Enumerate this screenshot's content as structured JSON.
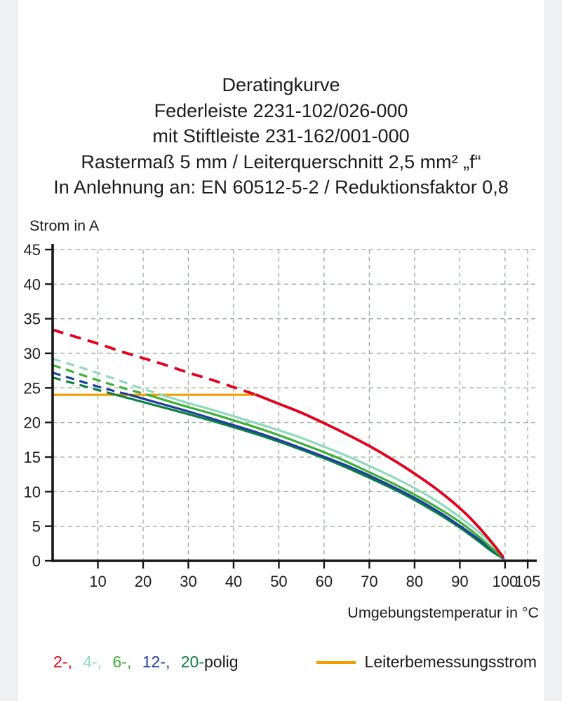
{
  "header": {
    "lines": [
      "Deratingkurve",
      "Federleiste 2231-102/026-000",
      "mit Stiftleiste 231-162/001-000",
      "Rastermaß 5 mm / Leiterquerschnitt 2,5 mm² „f“",
      "In Anlehnung an: EN 60512-5-2 / Reduktionsfaktor 0,8"
    ]
  },
  "chart_data": {
    "type": "line",
    "title": "Deratingkurve",
    "xlabel": "Umgebungstemperatur in °C",
    "ylabel": "Strom in A",
    "xlim": [
      0,
      107
    ],
    "ylim": [
      0,
      45
    ],
    "xticks": [
      10,
      20,
      30,
      40,
      50,
      60,
      70,
      80,
      90,
      100,
      105
    ],
    "yticks": [
      0,
      5,
      10,
      15,
      20,
      25,
      30,
      35,
      40,
      45
    ],
    "grid": true,
    "grid_color": "#9aab9a",
    "axis_color": "#161615",
    "series": [
      {
        "name": "2-polig",
        "color": "#e2001a",
        "stroke_width": 3.8,
        "dash_pattern": "16 10",
        "dash_until_x": 45,
        "points": [
          [
            0,
            33.4
          ],
          [
            5,
            32.4
          ],
          [
            10,
            31.4
          ],
          [
            15,
            30.3
          ],
          [
            20,
            29.3
          ],
          [
            25,
            28.3
          ],
          [
            30,
            27.2
          ],
          [
            35,
            26.2
          ],
          [
            40,
            25.1
          ],
          [
            45,
            24
          ],
          [
            50,
            22.7
          ],
          [
            55,
            21.4
          ],
          [
            60,
            19.9
          ],
          [
            65,
            18.3
          ],
          [
            70,
            16.6
          ],
          [
            75,
            14.7
          ],
          [
            80,
            12.6
          ],
          [
            85,
            10.3
          ],
          [
            90,
            7.6
          ],
          [
            93,
            5.7
          ],
          [
            96,
            3.5
          ],
          [
            98,
            1.9
          ],
          [
            99.5,
            0.6
          ]
        ]
      },
      {
        "name": "4-polig",
        "color": "#8fd9c0",
        "stroke_width": 3.2,
        "dash_pattern": "12 8",
        "dash_until_x": 24,
        "points": [
          [
            0,
            29.2
          ],
          [
            6,
            28
          ],
          [
            12,
            26.7
          ],
          [
            18,
            25.3
          ],
          [
            24,
            24
          ],
          [
            30,
            22.8
          ],
          [
            36,
            21.7
          ],
          [
            42,
            20.5
          ],
          [
            48,
            19.3
          ],
          [
            54,
            18
          ],
          [
            60,
            16.5
          ],
          [
            66,
            14.9
          ],
          [
            72,
            13.1
          ],
          [
            78,
            11.2
          ],
          [
            84,
            9
          ],
          [
            89,
            6.8
          ],
          [
            93,
            4.8
          ],
          [
            96,
            3.1
          ],
          [
            98,
            1.8
          ],
          [
            99.5,
            0.8
          ]
        ]
      },
      {
        "name": "6-polig",
        "color": "#3faf37",
        "stroke_width": 3.2,
        "dash_pattern": "12 8",
        "dash_until_x": 21,
        "points": [
          [
            0,
            28.3
          ],
          [
            5,
            27.2
          ],
          [
            11,
            25.9
          ],
          [
            16,
            24.9
          ],
          [
            21,
            24
          ],
          [
            28,
            22.6
          ],
          [
            35,
            21.3
          ],
          [
            42,
            19.9
          ],
          [
            49,
            18.4
          ],
          [
            56,
            16.7
          ],
          [
            63,
            14.9
          ],
          [
            70,
            12.8
          ],
          [
            77,
            10.6
          ],
          [
            84,
            8.1
          ],
          [
            90,
            5.6
          ],
          [
            94,
            3.6
          ],
          [
            97,
            1.9
          ],
          [
            99.2,
            0.6
          ]
        ]
      },
      {
        "name": "12-polig",
        "color": "#1e3fa0",
        "stroke_width": 3.2,
        "dash_pattern": "12 8",
        "dash_until_x": 17,
        "points": [
          [
            0,
            27.2
          ],
          [
            5,
            26.2
          ],
          [
            11,
            25
          ],
          [
            17,
            24
          ],
          [
            24,
            22.7
          ],
          [
            31,
            21.4
          ],
          [
            38,
            20
          ],
          [
            45,
            18.6
          ],
          [
            52,
            17
          ],
          [
            59,
            15.3
          ],
          [
            66,
            13.5
          ],
          [
            73,
            11.4
          ],
          [
            80,
            9.1
          ],
          [
            86,
            6.8
          ],
          [
            91,
            4.6
          ],
          [
            95,
            2.7
          ],
          [
            98,
            1.2
          ],
          [
            99.6,
            0.4
          ]
        ]
      },
      {
        "name": "20-polig",
        "color": "#0c8140",
        "stroke_width": 3.2,
        "dash_pattern": "12 8",
        "dash_until_x": 14,
        "points": [
          [
            0,
            26.5
          ],
          [
            5,
            25.6
          ],
          [
            10,
            24.7
          ],
          [
            14,
            24
          ],
          [
            22,
            22.6
          ],
          [
            30,
            21.2
          ],
          [
            38,
            19.7
          ],
          [
            46,
            18.1
          ],
          [
            54,
            16.3
          ],
          [
            62,
            14.3
          ],
          [
            70,
            12
          ],
          [
            78,
            9.5
          ],
          [
            85,
            6.9
          ],
          [
            90,
            4.8
          ],
          [
            94,
            2.9
          ],
          [
            97,
            1.4
          ],
          [
            99.4,
            0.4
          ]
        ]
      }
    ],
    "reference_line": {
      "name": "Leiterbemessungsstrom",
      "color": "#f59c00",
      "y": 24,
      "x_start": 0,
      "x_end": 45
    }
  },
  "legend": {
    "pole_labels": [
      "2-,",
      "4-,",
      "6-,",
      "12-,",
      "20-"
    ],
    "poles_suffix": "polig",
    "reference_label": "Leiterbemessungsstrom"
  }
}
